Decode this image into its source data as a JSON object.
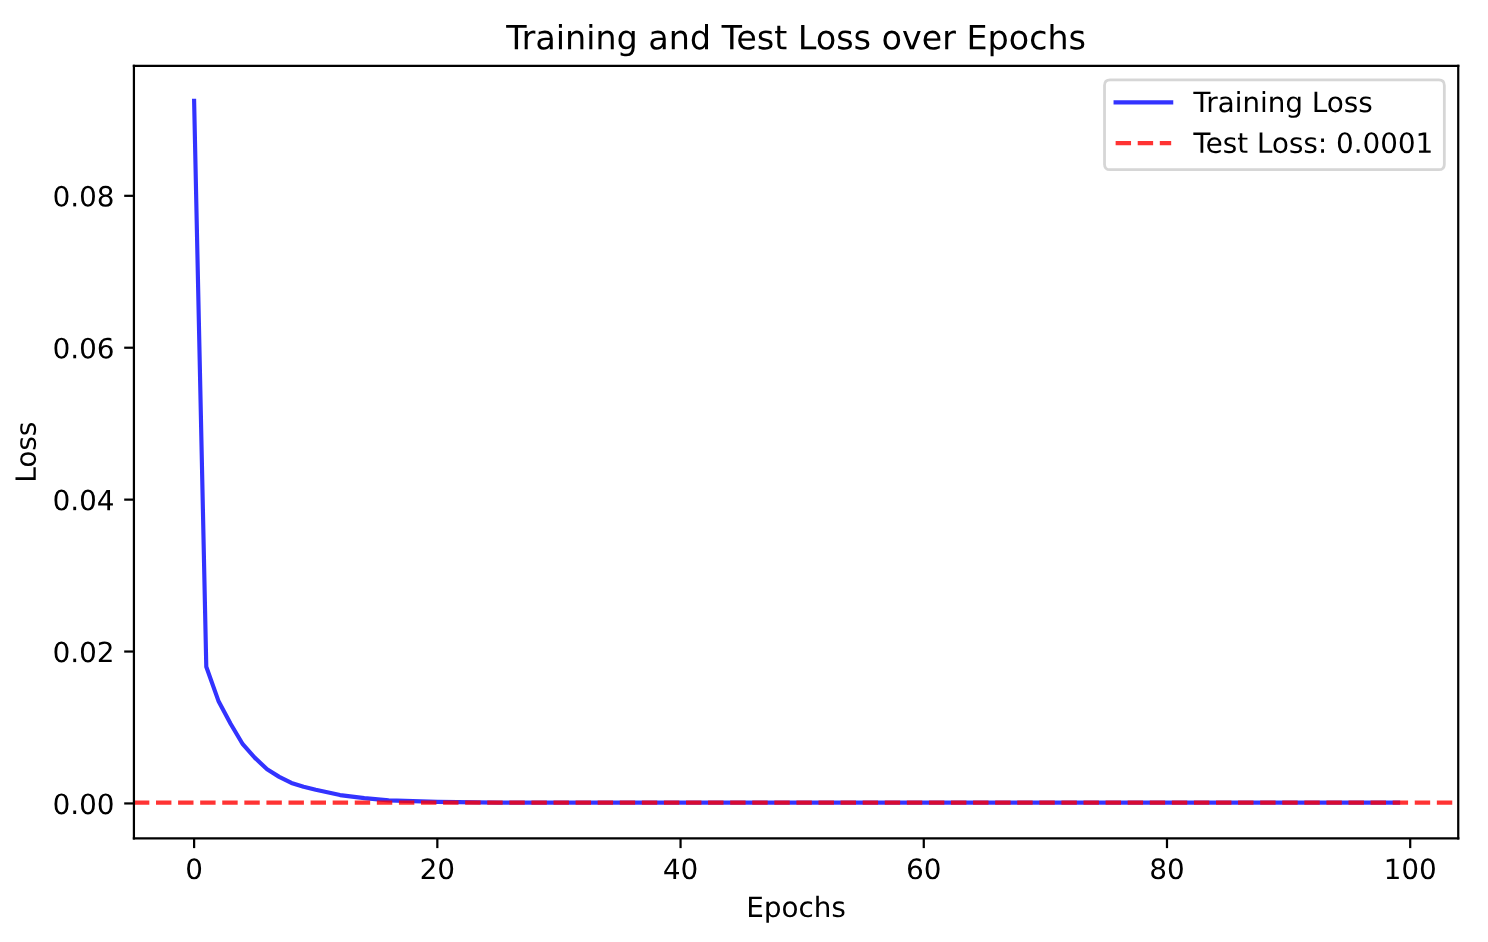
{
  "chart_data": {
    "type": "line",
    "title": "Training and Test Loss over Epochs",
    "xlabel": "Epochs",
    "ylabel": "Loss",
    "x": [
      0,
      1,
      2,
      3,
      4,
      5,
      6,
      7,
      8,
      9,
      10,
      12,
      14,
      16,
      18,
      20,
      25,
      30,
      40,
      60,
      80,
      99
    ],
    "series": [
      {
        "name": "Training Loss",
        "color": "#0000ff",
        "values": [
          0.0925,
          0.018,
          0.0135,
          0.0105,
          0.0078,
          0.006,
          0.0045,
          0.0035,
          0.0027,
          0.0022,
          0.0018,
          0.0011,
          0.0007,
          0.0004,
          0.0003,
          0.0002,
          0.0001,
          0.0001,
          0.0001,
          0.0001,
          0.0001,
          0.0001
        ]
      }
    ],
    "ref_lines": [
      {
        "axis": "y",
        "value": 0.0001,
        "label": "Test Loss: 0.0001",
        "color": "#ff0000",
        "line_style": "dashed"
      }
    ],
    "xlim": [
      -4.95,
      103.95
    ],
    "ylim": [
      -0.0046,
      0.0971
    ],
    "xticks": [
      0,
      20,
      40,
      60,
      80,
      100
    ],
    "yticks": [
      {
        "value": 0,
        "label": "0.00"
      },
      0.02,
      0.04,
      0.06,
      0.08
    ],
    "legend": "top right",
    "grid": false,
    "line_style": "solid",
    "marker": "none"
  }
}
